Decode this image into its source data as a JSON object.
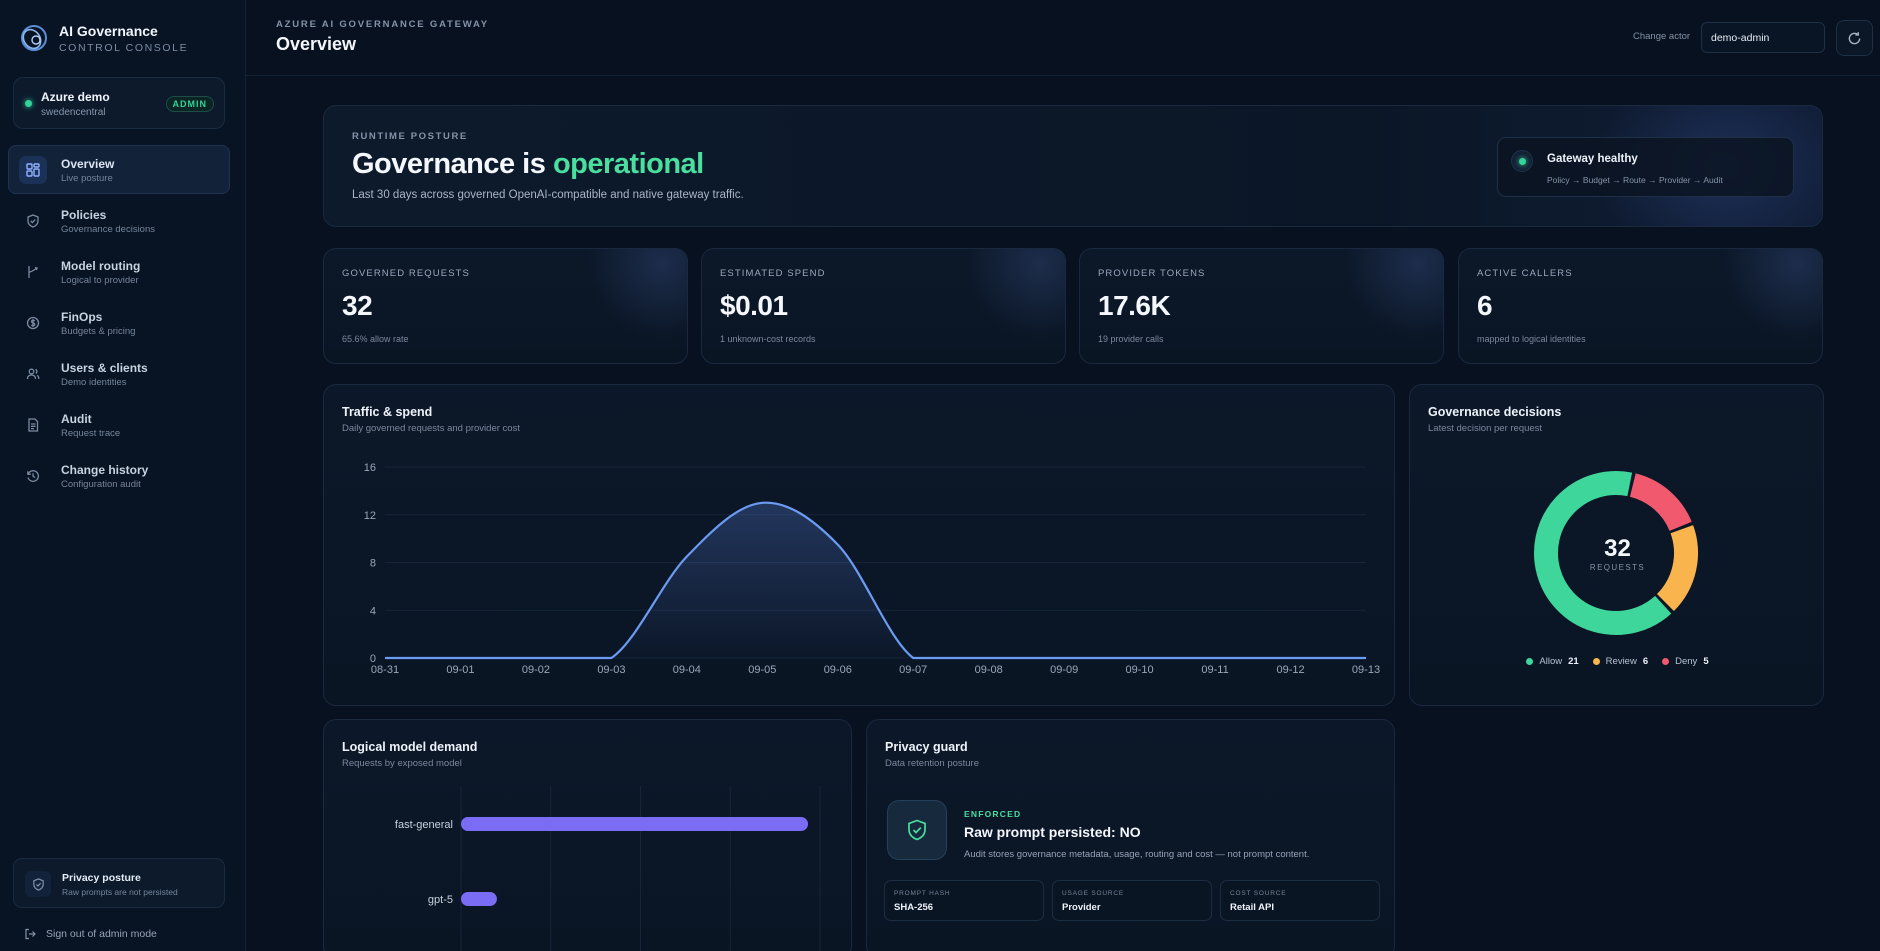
{
  "brand": {
    "title": "AI Governance",
    "subtitle": "CONTROL CONSOLE"
  },
  "tenant": {
    "name": "Azure demo",
    "region": "swedencentral",
    "role_badge": "ADMIN"
  },
  "sidebar": {
    "items": [
      {
        "label": "Overview",
        "sub": "Live posture",
        "icon": "grid-icon",
        "active": true
      },
      {
        "label": "Policies",
        "sub": "Governance decisions",
        "icon": "shield-icon"
      },
      {
        "label": "Model routing",
        "sub": "Logical to provider",
        "icon": "route-icon"
      },
      {
        "label": "FinOps",
        "sub": "Budgets & pricing",
        "icon": "coin-icon"
      },
      {
        "label": "Users & clients",
        "sub": "Demo identities",
        "icon": "users-icon"
      },
      {
        "label": "Audit",
        "sub": "Request trace",
        "icon": "document-icon"
      },
      {
        "label": "Change history",
        "sub": "Configuration audit",
        "icon": "history-icon"
      }
    ],
    "privacy_posture": {
      "title": "Privacy posture",
      "sub": "Raw prompts are not persisted"
    },
    "signout": "Sign out of admin mode"
  },
  "header": {
    "eyebrow": "AZURE AI GOVERNANCE GATEWAY",
    "title": "Overview",
    "actor_label": "Change actor",
    "actor_value": "demo-admin"
  },
  "hero": {
    "eyebrow": "RUNTIME POSTURE",
    "title_prefix": "Governance is ",
    "title_accent": "operational",
    "description": "Last 30 days across governed OpenAI-compatible and native gateway traffic.",
    "health_title": "Gateway healthy",
    "health_sub": "Policy → Budget → Route → Provider → Audit"
  },
  "stats": [
    {
      "label": "GOVERNED REQUESTS",
      "value": "32",
      "sub": "65.6% allow rate"
    },
    {
      "label": "ESTIMATED SPEND",
      "value": "$0.01",
      "sub": "1 unknown-cost records"
    },
    {
      "label": "PROVIDER TOKENS",
      "value": "17.6K",
      "sub": "19 provider calls"
    },
    {
      "label": "ACTIVE CALLERS",
      "value": "6",
      "sub": "mapped to logical identities"
    }
  ],
  "traffic": {
    "title": "Traffic & spend",
    "sub": "Daily governed requests and provider cost"
  },
  "decisions": {
    "title": "Governance decisions",
    "sub": "Latest decision per request",
    "total": "32",
    "total_label": "REQUESTS",
    "legend": [
      {
        "name": "Allow",
        "count": "21",
        "color": "#3fd69b"
      },
      {
        "name": "Review",
        "count": "6",
        "color": "#f9b44d"
      },
      {
        "name": "Deny",
        "count": "5",
        "color": "#f0596e"
      }
    ]
  },
  "demand": {
    "title": "Logical model demand",
    "sub": "Requests by exposed model"
  },
  "privacy": {
    "title": "Privacy guard",
    "sub": "Data retention posture",
    "status": "ENFORCED",
    "headline": "Raw prompt persisted: NO",
    "description": "Audit stores governance metadata, usage, routing and cost — not prompt content.",
    "meta": [
      {
        "key": "PROMPT HASH",
        "value": "SHA-256"
      },
      {
        "key": "USAGE SOURCE",
        "value": "Provider"
      },
      {
        "key": "COST SOURCE",
        "value": "Retail API"
      }
    ]
  },
  "colors": {
    "accent": "#4ade9f",
    "line": "#6b9bf2",
    "bar": "#7b6cf6",
    "background": "#07111f"
  },
  "chart_data": [
    {
      "type": "area",
      "title": "Traffic & spend",
      "x": [
        "08-31",
        "09-01",
        "09-02",
        "09-03",
        "09-04",
        "09-05",
        "09-06",
        "09-07",
        "09-08",
        "09-09",
        "09-10",
        "09-11",
        "09-12",
        "09-13"
      ],
      "series": [
        {
          "values": [
            0,
            0,
            0,
            0,
            8.5,
            13,
            9.5,
            0,
            0,
            0,
            0,
            0,
            0,
            0
          ]
        }
      ],
      "ylim": [
        0,
        16
      ],
      "yticks": [
        0,
        4,
        8,
        12,
        16
      ],
      "grid": true
    },
    {
      "type": "pie",
      "title": "Governance decisions",
      "categories": [
        "Allow",
        "Review",
        "Deny"
      ],
      "values": [
        21,
        6,
        5
      ]
    },
    {
      "type": "bar",
      "orientation": "horizontal",
      "title": "Logical model demand",
      "categories": [
        "fast-general",
        "gpt-5"
      ],
      "values": [
        29,
        3
      ],
      "xlim": [
        0,
        30
      ],
      "grid": true
    }
  ]
}
